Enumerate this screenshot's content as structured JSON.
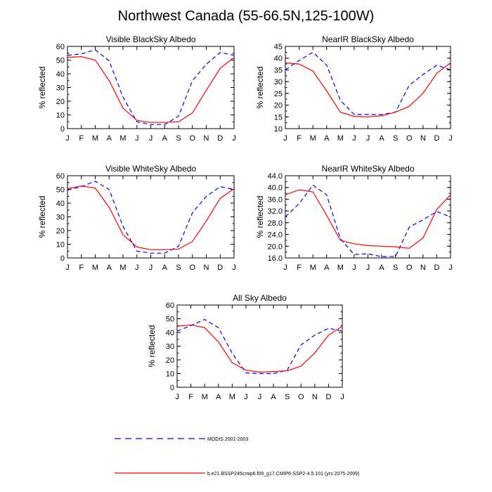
{
  "page": {
    "title": "Northwest Canada (55-66.5N,125-100W)"
  },
  "legend": {
    "items": [
      {
        "label": "MODIS 2001-2003",
        "color": "#0000ff",
        "style": "dashed"
      },
      {
        "label": "b.e21.BSSP245cmip6.f09_g17.CMIP6-SSP2-4.5.101 (yrs 2075-2099)",
        "color": "#ff0000",
        "style": "solid"
      }
    ]
  },
  "chart_data": [
    {
      "type": "line",
      "title": "Visible BlackSky Albedo",
      "xlabel": "",
      "ylabel": "% reflected",
      "categories": [
        "J",
        "F",
        "M",
        "A",
        "M",
        "J",
        "J",
        "A",
        "S",
        "O",
        "N",
        "D",
        "J"
      ],
      "ylim": [
        0,
        60
      ],
      "yticks": [
        0,
        10,
        20,
        30,
        40,
        50,
        60
      ],
      "ytick_labels": [
        "0",
        "10",
        "20",
        "30",
        "40",
        "50",
        "60"
      ],
      "series": [
        {
          "name": "MODIS 2001-2003",
          "color": "#0000ff",
          "style": "dashed",
          "values": [
            53.5,
            54.5,
            57.5,
            49.5,
            23,
            5,
            3,
            3,
            9,
            35,
            47,
            55.5,
            53.5
          ]
        },
        {
          "name": "b.e21.BSSP245cmip6.f09_g17.CMIP6-SSP2-4.5.101 (yrs 2075-2099)",
          "color": "#ff0000",
          "style": "solid",
          "values": [
            52,
            52.5,
            50,
            35,
            15,
            6,
            4.5,
            4.5,
            5,
            11.5,
            28,
            44,
            52
          ]
        }
      ]
    },
    {
      "type": "line",
      "title": "NearIR BlackSky Albedo",
      "xlabel": "",
      "ylabel": "% reflected",
      "categories": [
        "J",
        "F",
        "M",
        "A",
        "M",
        "J",
        "J",
        "A",
        "S",
        "O",
        "N",
        "D",
        "J"
      ],
      "ylim": [
        10,
        45
      ],
      "yticks": [
        10,
        15,
        20,
        25,
        30,
        35,
        40,
        45
      ],
      "ytick_labels": [
        "10",
        "15",
        "20",
        "25",
        "30",
        "35",
        "40",
        "45"
      ],
      "series": [
        {
          "name": "MODIS 2001-2003",
          "color": "#0000ff",
          "style": "dashed",
          "values": [
            35,
            39,
            42.5,
            37,
            22,
            16,
            16,
            16,
            17,
            28.5,
            33,
            37,
            35
          ]
        },
        {
          "name": "b.e21.BSSP245cmip6.f09_g17.CMIP6-SSP2-4.5.101 (yrs 2075-2099)",
          "color": "#ff0000",
          "style": "solid",
          "values": [
            38,
            37.5,
            34.5,
            26,
            17,
            15.2,
            15,
            15.5,
            17,
            19.5,
            25,
            33.5,
            38
          ]
        }
      ]
    },
    {
      "type": "line",
      "title": "Visible WhiteSky Albedo",
      "xlabel": "",
      "ylabel": "% reflected",
      "categories": [
        "J",
        "F",
        "M",
        "A",
        "M",
        "J",
        "J",
        "A",
        "S",
        "O",
        "N",
        "D",
        "J"
      ],
      "ylim": [
        0,
        60
      ],
      "yticks": [
        0,
        10,
        20,
        30,
        40,
        50,
        60
      ],
      "ytick_labels": [
        "0",
        "10",
        "20",
        "30",
        "40",
        "50",
        "60"
      ],
      "series": [
        {
          "name": "MODIS 2001-2003",
          "color": "#0000ff",
          "style": "dashed",
          "values": [
            49.5,
            52,
            56,
            50,
            23,
            5,
            3.5,
            3.5,
            8.5,
            33,
            45,
            52,
            50
          ]
        },
        {
          "name": "b.e21.BSSP245cmip6.f09_g17.CMIP6-SSP2-4.5.101 (yrs 2075-2099)",
          "color": "#ff0000",
          "style": "solid",
          "values": [
            50.5,
            52.5,
            51,
            37,
            17,
            8,
            6,
            6,
            6.5,
            12,
            27,
            43.5,
            50.5
          ]
        }
      ]
    },
    {
      "type": "line",
      "title": "NearIR WhiteSky Albedo",
      "xlabel": "",
      "ylabel": "% reflected",
      "categories": [
        "J",
        "F",
        "M",
        "A",
        "M",
        "J",
        "J",
        "A",
        "S",
        "O",
        "N",
        "D",
        "J"
      ],
      "ylim": [
        16,
        44
      ],
      "yticks": [
        16,
        20,
        24,
        28,
        32,
        36,
        40,
        44
      ],
      "ytick_labels": [
        "16.0",
        "20.0",
        "24.0",
        "28.0",
        "32.0",
        "36.0",
        "40.0",
        "44.0"
      ],
      "series": [
        {
          "name": "MODIS 2001-2003",
          "color": "#0000ff",
          "style": "dashed",
          "values": [
            30,
            34.5,
            40.8,
            37.5,
            22.5,
            17.2,
            17.4,
            16.4,
            16.5,
            26.5,
            29,
            31.8,
            30
          ]
        },
        {
          "name": "b.e21.BSSP245cmip6.f09_g17.CMIP6-SSP2-4.5.101 (yrs 2075-2099)",
          "color": "#ff0000",
          "style": "solid",
          "values": [
            37.5,
            39.2,
            38.5,
            30.5,
            22,
            20.8,
            20.2,
            20,
            19.8,
            19.3,
            22.8,
            32.5,
            37.5
          ]
        }
      ]
    },
    {
      "type": "line",
      "title": "All Sky Albedo",
      "xlabel": "",
      "ylabel": "% reflected",
      "categories": [
        "J",
        "F",
        "M",
        "A",
        "M",
        "J",
        "J",
        "A",
        "S",
        "O",
        "N",
        "D",
        "J"
      ],
      "ylim": [
        0,
        60
      ],
      "yticks": [
        0,
        10,
        20,
        30,
        40,
        50,
        60
      ],
      "ytick_labels": [
        "0",
        "10",
        "20",
        "30",
        "40",
        "50",
        "60"
      ],
      "series": [
        {
          "name": "MODIS 2001-2003",
          "color": "#0000ff",
          "style": "dashed",
          "values": [
            41,
            45,
            49.5,
            43.5,
            25,
            10.5,
            10,
            10,
            12.5,
            31,
            38,
            43,
            41
          ]
        },
        {
          "name": "b.e21.BSSP245cmip6.f09_g17.CMIP6-SSP2-4.5.101 (yrs 2075-2099)",
          "color": "#ff0000",
          "style": "solid",
          "values": [
            44.5,
            45.5,
            43.5,
            33,
            18,
            12.5,
            11,
            11.5,
            12,
            15.5,
            25,
            38,
            44.5
          ]
        }
      ]
    }
  ]
}
